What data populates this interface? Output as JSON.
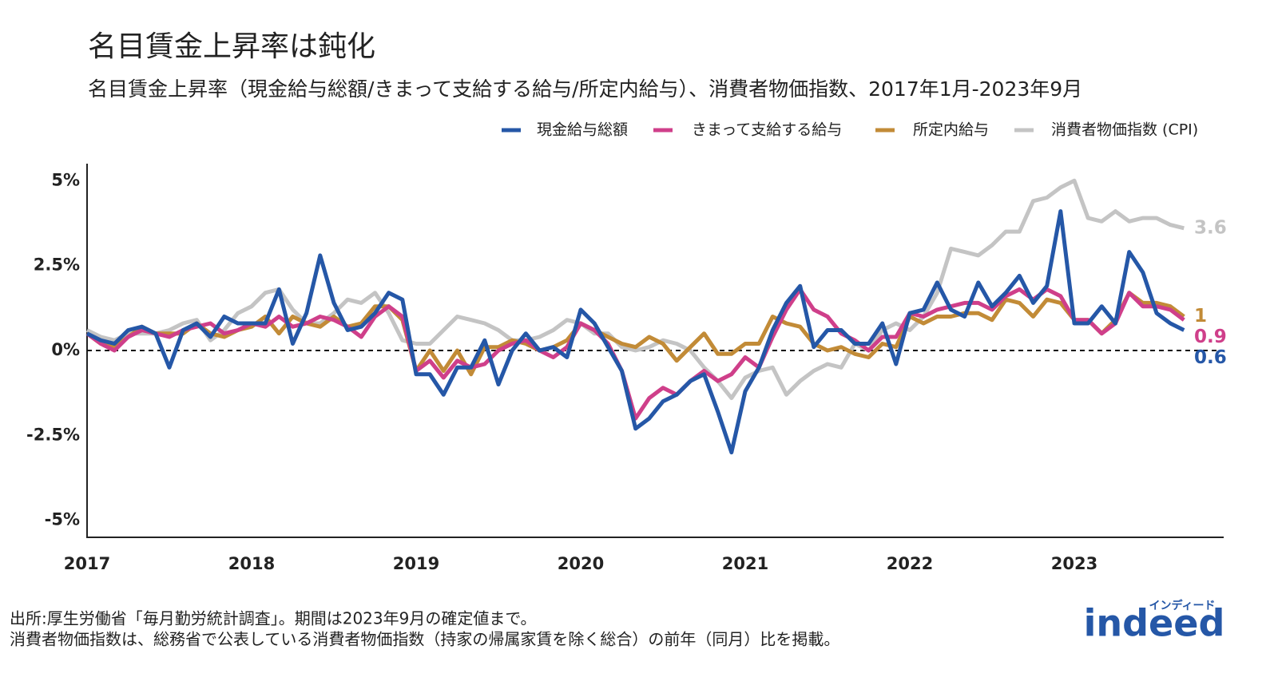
{
  "chart_data": {
    "type": "line",
    "title": "名目賃金上昇率は鈍化",
    "subtitle": "名目賃金上昇率（現金給与総額/きまって支給する給与/所定内給与）、消費者物価指数、2017年1月-2023年9月",
    "categories": [
      "2017",
      null,
      null,
      null,
      null,
      null,
      null,
      null,
      null,
      null,
      null,
      null,
      "2018",
      null,
      null,
      null,
      null,
      null,
      null,
      null,
      null,
      null,
      null,
      null,
      "2019",
      null,
      null,
      null,
      null,
      null,
      null,
      null,
      null,
      null,
      null,
      null,
      "2020",
      null,
      null,
      null,
      null,
      null,
      null,
      null,
      null,
      null,
      null,
      null,
      "2021",
      null,
      null,
      null,
      null,
      null,
      null,
      null,
      null,
      null,
      null,
      null,
      "2022",
      null,
      null,
      null,
      null,
      null,
      null,
      null,
      null,
      null,
      null,
      null,
      "2023",
      null,
      null,
      null,
      null,
      null,
      null,
      null,
      null
    ],
    "series": [
      {
        "name": "現金給与総額",
        "color": "#2557a7",
        "values": [
          0.5,
          0.3,
          0.2,
          0.6,
          0.7,
          0.5,
          -0.5,
          0.6,
          0.8,
          0.4,
          1.0,
          0.8,
          0.8,
          0.8,
          1.8,
          0.2,
          1.1,
          2.8,
          1.4,
          0.6,
          0.7,
          1.1,
          1.7,
          1.5,
          -0.7,
          -0.7,
          -1.3,
          -0.5,
          -0.5,
          0.3,
          -1.0,
          0.0,
          0.5,
          0.0,
          0.1,
          -0.2,
          1.2,
          0.8,
          0.1,
          -0.6,
          -2.3,
          -2.0,
          -1.5,
          -1.3,
          -0.9,
          -0.7,
          -1.8,
          -3.0,
          -1.2,
          -0.5,
          0.6,
          1.4,
          1.9,
          0.1,
          0.6,
          0.6,
          0.2,
          0.2,
          0.8,
          -0.4,
          1.1,
          1.2,
          2.0,
          1.2,
          1.0,
          2.0,
          1.3,
          1.7,
          2.2,
          1.4,
          1.9,
          4.1,
          0.8,
          0.8,
          1.3,
          0.8,
          2.9,
          2.3,
          1.1,
          0.8,
          0.6
        ]
      },
      {
        "name": "きまって支給する給与",
        "color": "#cf3f8a",
        "values": [
          0.5,
          0.2,
          0.0,
          0.4,
          0.6,
          0.5,
          0.4,
          0.6,
          0.7,
          0.8,
          0.5,
          0.6,
          0.8,
          0.7,
          1.0,
          0.7,
          0.8,
          1.0,
          0.9,
          0.7,
          0.4,
          1.0,
          1.3,
          1.0,
          -0.6,
          -0.3,
          -0.8,
          -0.3,
          -0.5,
          -0.4,
          0.0,
          0.2,
          0.3,
          0.0,
          -0.2,
          0.1,
          0.8,
          0.6,
          0.2,
          -0.6,
          -2.0,
          -1.4,
          -1.1,
          -1.3,
          -0.9,
          -0.6,
          -0.9,
          -0.7,
          -0.2,
          -0.5,
          0.4,
          1.2,
          1.8,
          1.2,
          1.0,
          0.5,
          0.3,
          0.0,
          0.4,
          0.4,
          1.1,
          1.0,
          1.2,
          1.3,
          1.4,
          1.4,
          1.2,
          1.6,
          1.8,
          1.5,
          1.8,
          1.6,
          0.9,
          0.9,
          0.5,
          0.8,
          1.7,
          1.3,
          1.3,
          1.2,
          0.9
        ]
      },
      {
        "name": "所定内給与",
        "color": "#c28b37",
        "values": [
          0.5,
          0.2,
          0.1,
          0.4,
          0.7,
          0.5,
          0.5,
          0.5,
          0.8,
          0.5,
          0.4,
          0.6,
          0.7,
          1.0,
          0.5,
          1.0,
          0.8,
          0.7,
          1.0,
          0.7,
          0.8,
          1.3,
          1.3,
          0.9,
          -0.6,
          0.0,
          -0.6,
          0.0,
          -0.7,
          0.1,
          0.1,
          0.3,
          0.2,
          0.0,
          0.1,
          0.3,
          0.8,
          0.6,
          0.4,
          0.2,
          0.1,
          0.4,
          0.2,
          -0.3,
          0.1,
          0.5,
          -0.1,
          -0.1,
          0.2,
          0.2,
          1.0,
          0.8,
          0.7,
          0.2,
          0.0,
          0.1,
          -0.1,
          -0.2,
          0.2,
          0.1,
          1.0,
          0.8,
          1.0,
          1.0,
          1.1,
          1.1,
          0.9,
          1.5,
          1.4,
          1.0,
          1.5,
          1.4,
          0.9,
          0.9,
          0.5,
          0.9,
          1.7,
          1.4,
          1.4,
          1.3,
          1.0
        ]
      },
      {
        "name": "消費者物価指数 (CPI)",
        "color": "#c4c4c4",
        "values": [
          0.6,
          0.4,
          0.3,
          0.5,
          0.5,
          0.5,
          0.6,
          0.8,
          0.9,
          0.3,
          0.6,
          1.1,
          1.3,
          1.7,
          1.8,
          1.2,
          0.8,
          0.8,
          1.1,
          1.5,
          1.4,
          1.7,
          1.1,
          0.3,
          0.2,
          0.2,
          0.6,
          1.0,
          0.9,
          0.8,
          0.6,
          0.3,
          0.3,
          0.4,
          0.6,
          0.9,
          0.8,
          0.5,
          0.5,
          0.1,
          0.0,
          0.1,
          0.3,
          0.2,
          0.0,
          -0.5,
          -0.9,
          -1.4,
          -0.8,
          -0.6,
          -0.5,
          -1.3,
          -0.9,
          -0.6,
          -0.4,
          -0.5,
          0.2,
          0.0,
          0.6,
          0.8,
          0.6,
          1.0,
          1.7,
          3.0,
          2.9,
          2.8,
          3.1,
          3.5,
          3.5,
          4.4,
          4.5,
          4.8,
          5.0,
          3.9,
          3.8,
          4.1,
          3.8,
          3.9,
          3.9,
          3.7,
          3.6
        ]
      }
    ],
    "ylim": [
      -5.5,
      5.5
    ],
    "yticks": [
      {
        "value": 5,
        "label": "5%"
      },
      {
        "value": 2.5,
        "label": "2.5%"
      },
      {
        "value": 0,
        "label": "0%"
      },
      {
        "value": -2.5,
        "label": "-2.5%"
      },
      {
        "value": -5,
        "label": "-5%"
      }
    ],
    "reference_line": 0,
    "grid": false,
    "legend": "top-right",
    "footnotes": [
      "出所:厚生労働省「毎月勤労統計調査」。期間は2023年9月の確定値まで。",
      "消費者物価指数は、総務省で公表している消費者物価指数（持家の帰属家賃を除く総合）の前年（同月）比を掲載。"
    ],
    "logo": {
      "text": "indeed",
      "subtext": "インディード"
    }
  }
}
